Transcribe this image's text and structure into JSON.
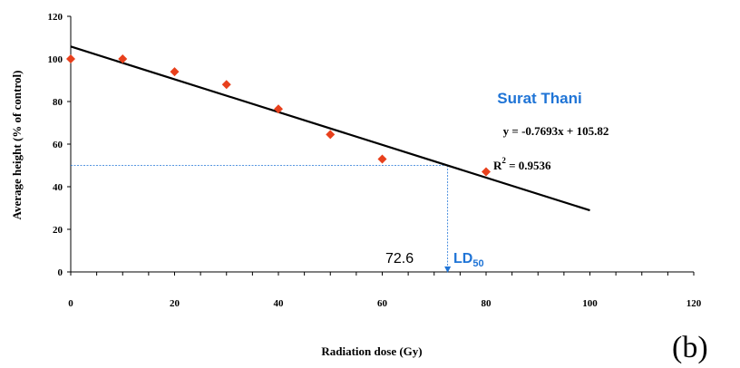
{
  "chart_data": {
    "type": "scatter",
    "panel_label": "(b)",
    "xlabel": "Radiation dose (Gy)",
    "ylabel": "Average height (% of control)",
    "xlim": [
      0,
      120
    ],
    "ylim": [
      0,
      120
    ],
    "x_ticks": [
      "0",
      "20",
      "40",
      "60",
      "80",
      "100",
      "120"
    ],
    "y_ticks": [
      "0",
      "20",
      "40",
      "60",
      "80",
      "100",
      "120"
    ],
    "points": {
      "x": [
        0,
        10,
        20,
        30,
        40,
        50,
        60,
        80
      ],
      "y": [
        100,
        100,
        94,
        88,
        76.5,
        64.5,
        53,
        47
      ],
      "color": "#e8401c"
    },
    "trendline": {
      "x_range": [
        0,
        100
      ],
      "slope": -0.7693,
      "intercept": 105.82,
      "color": "#000000"
    },
    "annotations": {
      "series_name": "Surat Thani",
      "series_color": "#1f74d6",
      "equation": "y = -0.7693x + 105.82",
      "r2_prefix": "R",
      "r2_sup": "2",
      "r2_value": " = 0.9536",
      "ld_main": "LD",
      "ld_sub": "50",
      "ld_value": "72.6",
      "ld_x": 72.6,
      "ld_y": 50,
      "guide_color": "#1f74d6"
    }
  }
}
